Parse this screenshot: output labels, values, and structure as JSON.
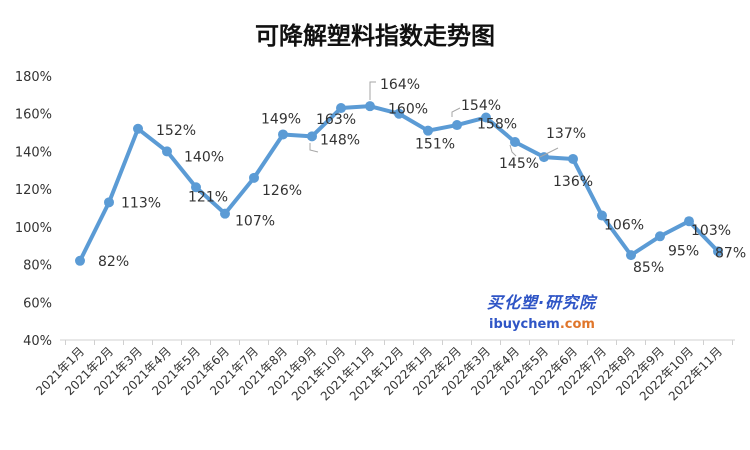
{
  "chart_data": {
    "type": "line",
    "title": "可降解塑料指数走势图",
    "xlabel": "",
    "ylabel": "",
    "categories": [
      "2021年1月",
      "2021年2月",
      "2021年3月",
      "2021年4月",
      "2021年5月",
      "2021年6月",
      "2021年7月",
      "2021年8月",
      "2021年9月",
      "2021年10月",
      "2021年11月",
      "2021年12月",
      "2022年1月",
      "2022年2月",
      "2022年3月",
      "2022年4月",
      "2022年5月",
      "2022年6月",
      "2022年7月",
      "2022年8月",
      "2022年9月",
      "2022年10月",
      "2022年11月"
    ],
    "values": [
      82,
      113,
      152,
      140,
      121,
      107,
      126,
      149,
      148,
      163,
      164,
      160,
      151,
      154,
      158,
      145,
      137,
      136,
      106,
      85,
      95,
      103,
      87
    ],
    "labels": [
      "82%",
      "113%",
      "152%",
      "140%",
      "121%",
      "107%",
      "126%",
      "149%",
      "148%",
      "163%",
      "164%",
      "160%",
      "151%",
      "154%",
      "158%",
      "145%",
      "137%",
      "136%",
      "106%",
      "85%",
      "95%",
      "103%",
      "87%"
    ],
    "ylim": [
      40,
      180
    ],
    "yticks": [
      "40%",
      "60%",
      "80%",
      "100%",
      "120%",
      "140%",
      "160%",
      "180%"
    ],
    "grid": false,
    "legend": "none",
    "line_color": "#5b9bd5"
  },
  "watermark": {
    "cn": "买化塑·研究院",
    "en_prefix": "ibuychem",
    "en_suffix": ".com"
  }
}
